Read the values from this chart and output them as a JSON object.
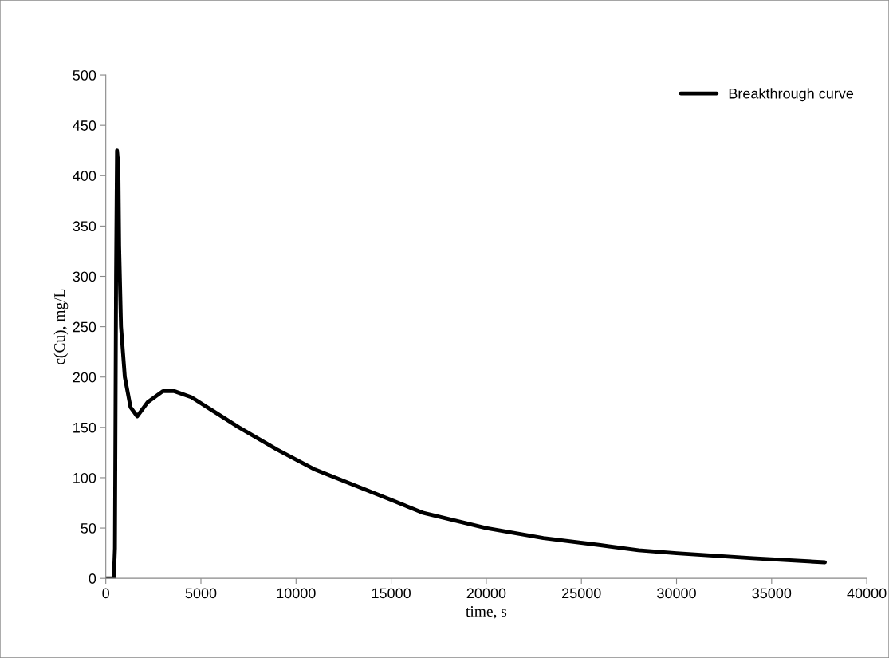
{
  "chart_data": {
    "type": "line",
    "xlabel": "time, s",
    "ylabel": "c(Cu), mg/L",
    "xlim": [
      0,
      40000
    ],
    "xticks": [
      0,
      5000,
      10000,
      15000,
      20000,
      25000,
      30000,
      35000,
      40000
    ],
    "ylim": [
      0,
      500
    ],
    "yticks": [
      0,
      50,
      100,
      150,
      200,
      250,
      300,
      350,
      400,
      450,
      500
    ],
    "grid": false,
    "legend": "top right",
    "marker": "none",
    "line_style": "solid",
    "series": [
      {
        "name": "Breakthrough curve",
        "color": "#000000",
        "x": [
          0,
          300,
          420,
          480,
          540,
          590,
          660,
          700,
          800,
          1000,
          1300,
          1650,
          2200,
          3000,
          3600,
          4500,
          5500,
          7000,
          9000,
          11000,
          13000,
          15000,
          16700,
          20000,
          23000,
          26000,
          28000,
          30000,
          34000,
          37800
        ],
        "values": [
          0,
          0,
          0,
          30,
          300,
          425,
          410,
          330,
          250,
          200,
          170,
          161,
          175,
          186,
          186,
          180,
          168,
          150,
          128,
          108,
          93,
          78,
          65,
          50,
          40,
          33,
          28,
          25,
          20,
          16
        ]
      }
    ]
  }
}
